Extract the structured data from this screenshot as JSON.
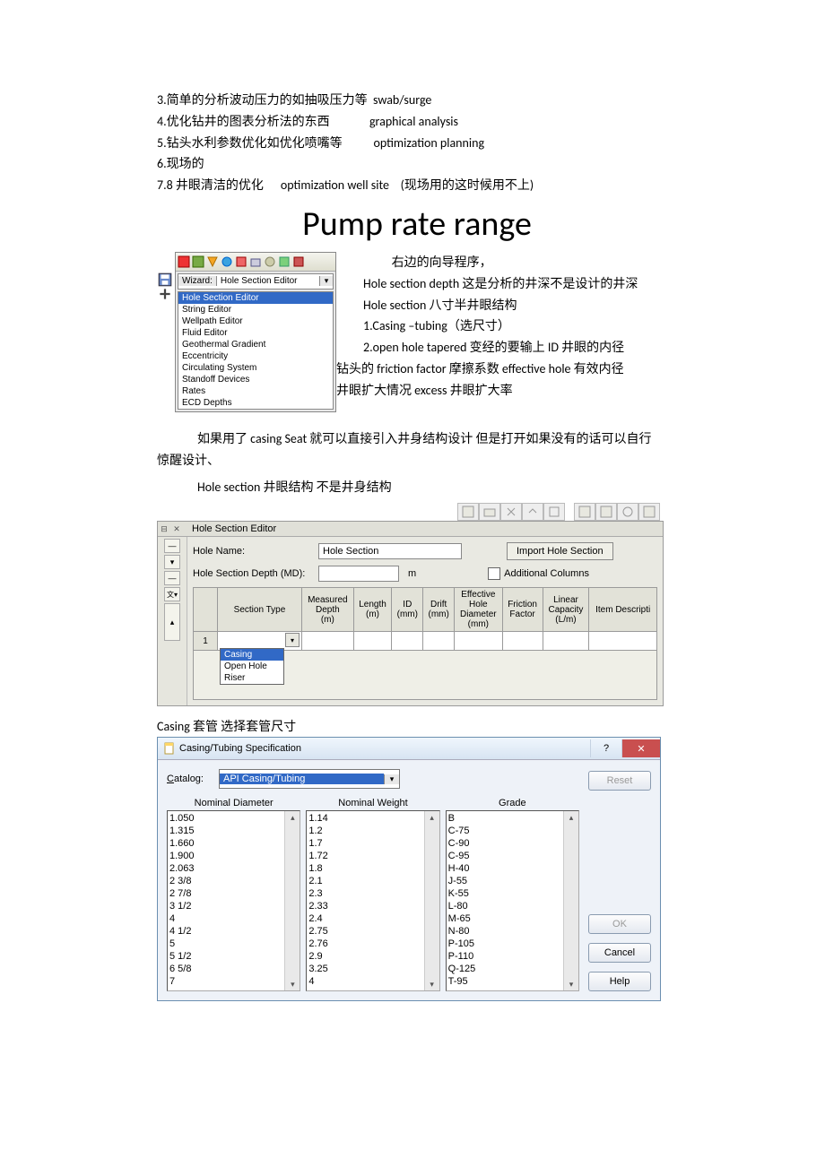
{
  "notes": {
    "r3": "3.简单的分析波动压力的如抽吸压力等  swab/surge",
    "r4": "4.优化钻井的图表分析法的东西              graphical analysis",
    "r5": "5.钻头水利参数优化如优化喷嘴等           optimization planning",
    "r6": "6.现场的",
    "r78": "7.8 井眼清洁的优化      optimization well site    (现场用的这时候用不上)"
  },
  "title": "Pump rate range",
  "wizard": {
    "label": "Wizard:",
    "selected": "Hole Section Editor",
    "highlighted": "Hole Section Editor",
    "items": [
      "String Editor",
      "Wellpath Editor",
      "Fluid Editor",
      "Geothermal Gradient",
      "Eccentricity",
      "Circulating System",
      "Standoff Devices",
      "Rates",
      "ECD Depths"
    ]
  },
  "right": {
    "l1": "          右边的向导程序，",
    "l2": "Hole section depth  这是分析的井深不是设计的井深",
    "l3": "Hole section    八寸半井眼结构",
    "l4": "1.Casing –tubing（选尺寸）",
    "l5": "2.open hole      tapered 变经的要输上    ID 井眼的内径",
    "l6": "钻头的    friction factor  摩擦系数      effective hole 有效内径",
    "l7": "井眼扩大情况    excess 井眼扩大率"
  },
  "para1a": "如果用了 casing Seat  就可以直接引入井身结构设计  但是打开如果没有的话可以自行",
  "para1b": "惊醒设计、",
  "para2": "Hole section      井眼结构  不是井身结构",
  "hse": {
    "title": "Hole Section Editor",
    "holeName": "Hole Name:",
    "holeNameVal": "Hole Section",
    "importBtn": "Import Hole Section",
    "depthLbl": "Hole Section Depth (MD):",
    "depthUnit": "m",
    "addCols": "Additional Columns",
    "cols": [
      "",
      "Section Type",
      "Measured\nDepth\n(m)",
      "Length\n(m)",
      "ID\n(mm)",
      "Drift\n(mm)",
      "Effective\nHole\nDiameter\n(mm)",
      "Friction\nFactor",
      "Linear\nCapacity\n(L/m)",
      "Item Descripti"
    ],
    "rowIdx": "1",
    "pop": [
      "Casing",
      "Open Hole",
      "Riser"
    ]
  },
  "caption2": "Casing  套管    选择套管尺寸",
  "spec": {
    "title": "Casing/Tubing Specification",
    "catalogLbl": "Catalog:",
    "catalogVal": "API Casing/Tubing",
    "reset": "Reset",
    "hdrs": {
      "nd": "Nominal Diameter",
      "nw": "Nominal Weight",
      "gr": "Grade"
    },
    "nd": [
      "1.050",
      "1.315",
      "1.660",
      "1.900",
      "2.063",
      "2 3/8",
      "2 7/8",
      "3 1/2",
      "4",
      "4 1/2",
      "5",
      "5 1/2",
      "6 5/8",
      "7"
    ],
    "nw": [
      "1.14",
      "1.2",
      "1.7",
      "1.72",
      "1.8",
      "2.1",
      "2.3",
      "2.33",
      "2.4",
      "2.75",
      "2.76",
      "2.9",
      "3.25",
      "4"
    ],
    "gr": [
      "B",
      "C-75",
      "C-90",
      "C-95",
      "H-40",
      "J-55",
      "K-55",
      "L-80",
      "M-65",
      "N-80",
      "P-105",
      "P-110",
      "Q-125",
      "T-95"
    ],
    "ok": "OK",
    "cancel": "Cancel",
    "help": "Help"
  }
}
